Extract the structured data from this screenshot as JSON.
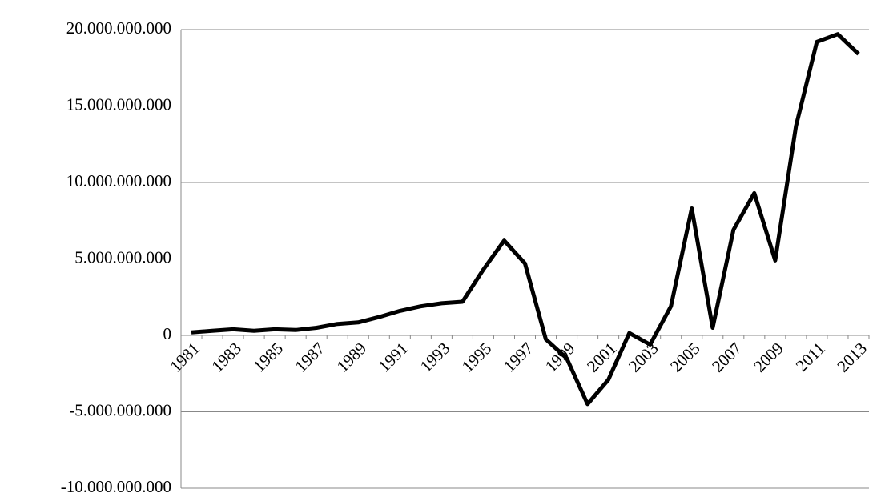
{
  "chart_data": {
    "type": "line",
    "categories": [
      "1981",
      null,
      "1983",
      null,
      "1985",
      null,
      "1987",
      null,
      "1989",
      null,
      "1991",
      null,
      "1993",
      null,
      "1995",
      null,
      "1997",
      null,
      "1999",
      null,
      "2001",
      null,
      "2003",
      null,
      "2005",
      null,
      "2007",
      null,
      "2009",
      null,
      "2011",
      null,
      "2013"
    ],
    "values": [
      200000000,
      300000000,
      400000000,
      300000000,
      400000000,
      350000000,
      500000000,
      750000000,
      850000000,
      1200000000,
      1600000000,
      1900000000,
      2100000000,
      2200000000,
      4300000000,
      6200000000,
      4700000000,
      -250000000,
      -1500000000,
      -4500000000,
      -2900000000,
      150000000,
      -600000000,
      1900000000,
      8300000000,
      500000000,
      6900000000,
      9300000000,
      4900000000,
      13700000000,
      19200000000,
      19700000000,
      18400000000
    ],
    "color": "#000000",
    "ylim": [
      -10000000000,
      20000000000
    ],
    "yticks": [
      {
        "value": -10000000000,
        "label": "-10.000.000.000"
      },
      {
        "value": -5000000000,
        "label": "-5.000.000.000"
      },
      0,
      {
        "value": 5000000000,
        "label": "5.000.000.000"
      },
      {
        "value": 10000000000,
        "label": "10.000.000.000"
      },
      {
        "value": 15000000000,
        "label": "15.000.000.000"
      },
      {
        "value": 20000000000,
        "label": "20.000.000.000"
      }
    ],
    "grid": true
  }
}
